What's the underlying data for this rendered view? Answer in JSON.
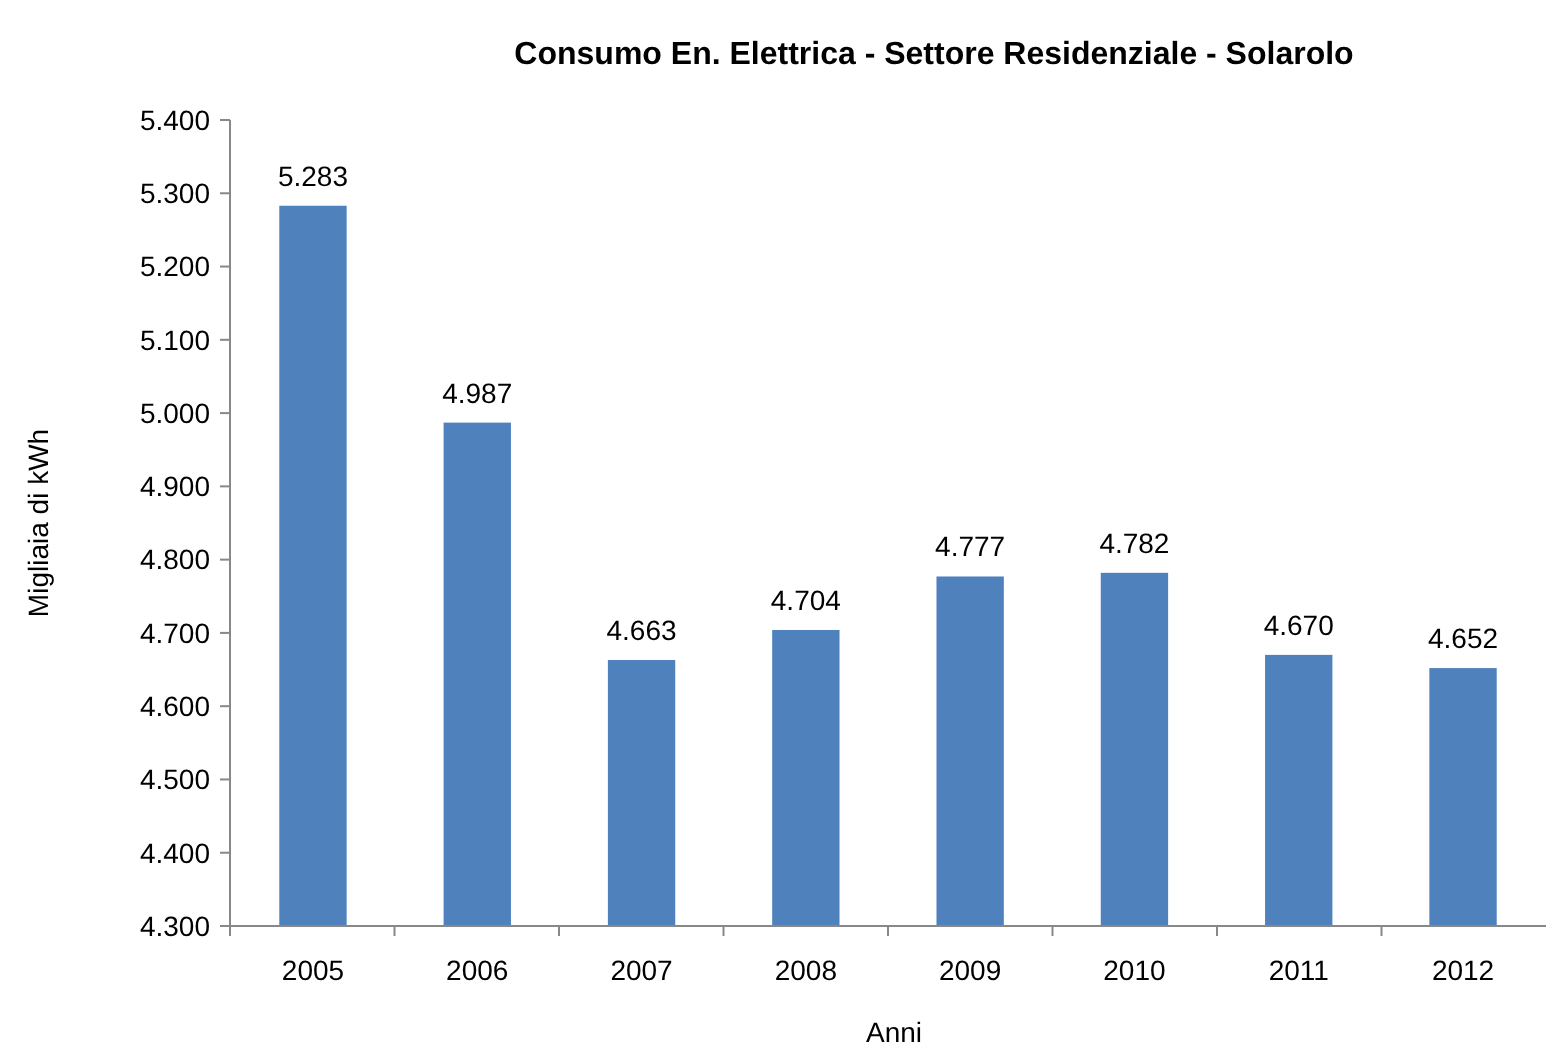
{
  "chart_data": {
    "type": "bar",
    "title": "Consumo En. Elettrica - Settore Residenziale - Solarolo",
    "xlabel": "Anni",
    "ylabel": "Migliaia di kWh",
    "categories": [
      "2005",
      "2006",
      "2007",
      "2008",
      "2009",
      "2010",
      "2011",
      "2012"
    ],
    "values": [
      5283,
      4987,
      4663,
      4704,
      4777,
      4782,
      4670,
      4652
    ],
    "value_labels": [
      "5.283",
      "4.987",
      "4.663",
      "4.704",
      "4.777",
      "4.782",
      "4.670",
      "4.652"
    ],
    "color": "#4f81bd",
    "ylim": [
      4300,
      5400
    ],
    "yticks": [
      {
        "value": 4300,
        "label": "4.300"
      },
      {
        "value": 4400,
        "label": "4.400"
      },
      {
        "value": 4500,
        "label": "4.500"
      },
      {
        "value": 4600,
        "label": "4.600"
      },
      {
        "value": 4700,
        "label": "4.700"
      },
      {
        "value": 4800,
        "label": "4.800"
      },
      {
        "value": 4900,
        "label": "4.900"
      },
      {
        "value": 5000,
        "label": "5.000"
      },
      {
        "value": 5100,
        "label": "5.100"
      },
      {
        "value": 5200,
        "label": "5.200"
      },
      {
        "value": 5300,
        "label": "5.300"
      },
      {
        "value": 5400,
        "label": "5.400"
      }
    ],
    "grid": false
  }
}
